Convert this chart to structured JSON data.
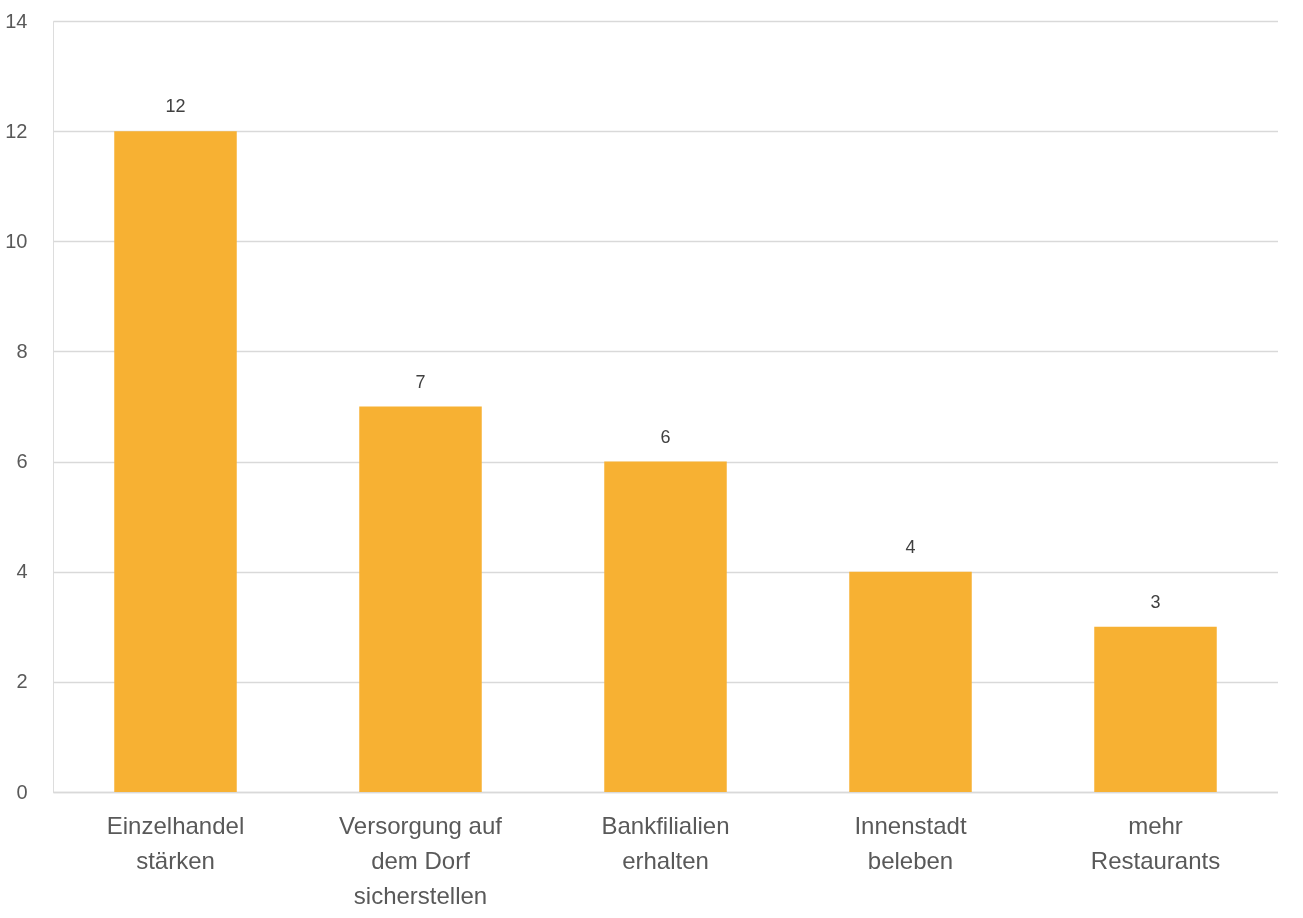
{
  "chart_data": {
    "type": "bar",
    "categories": [
      "Einzelhandel stärken",
      "Versorgung auf dem Dorf sicherstellen",
      "Bankfilialien erhalten",
      "Innenstadt beleben",
      "mehr Restaurants"
    ],
    "values": [
      12,
      7,
      6,
      4,
      3
    ],
    "color": "#f7b133",
    "ylim": [
      0,
      14
    ],
    "yticks": [
      0,
      2,
      4,
      6,
      8,
      10,
      12,
      14
    ],
    "grid": "y",
    "data_labels": true
  }
}
